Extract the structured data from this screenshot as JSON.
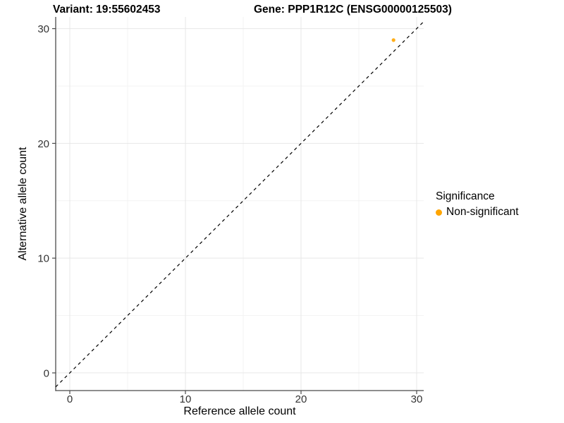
{
  "chart_data": {
    "type": "scatter",
    "title_variant": "Variant: 19:55602453",
    "title_gene": "Gene: PPP1R12C (ENSG00000125503)",
    "xlabel": "Reference allele count",
    "ylabel": "Alternative allele count",
    "x_ticks": [
      0,
      10,
      20,
      30
    ],
    "y_ticks": [
      0,
      10,
      20,
      30
    ],
    "xlim": [
      -1.22,
      30.61
    ],
    "ylim": [
      -1.54,
      31.02
    ],
    "minor_grid_step": 5,
    "grid": {
      "major": true,
      "minor": true
    },
    "series": [
      {
        "name": "Non-significant",
        "color": "#FFA500",
        "points": [
          {
            "x": 28,
            "y": 29
          }
        ]
      }
    ],
    "reference_line": {
      "kind": "identity",
      "slope": 1,
      "intercept": 0,
      "style": "dashed",
      "color": "#000000"
    },
    "legend": {
      "title": "Significance",
      "position": "right",
      "entries": [
        {
          "label": "Non-significant",
          "color": "#FFA500"
        }
      ]
    },
    "style": {
      "point_color": "#FFA500",
      "axis_line_color": "#4a4a4a",
      "tick_label_color": "#333333",
      "grid_major_color": "#e7e7e7",
      "grid_minor_color": "#f3f3f3"
    }
  }
}
